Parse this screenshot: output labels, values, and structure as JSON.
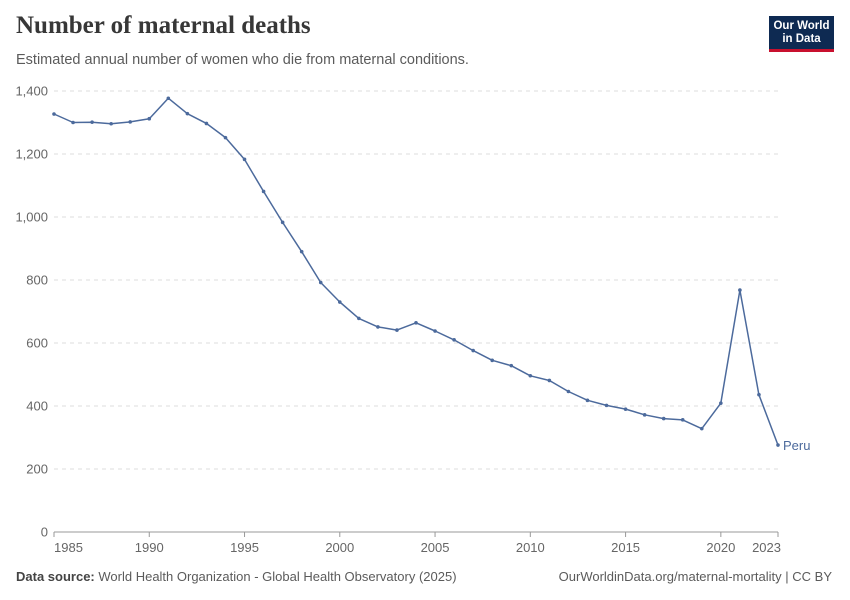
{
  "header": {
    "title": "Number of maternal deaths",
    "subtitle": "Estimated annual number of women who die from maternal conditions."
  },
  "logo": {
    "line1": "Our World",
    "line2": "in Data",
    "bg_color": "#0e2a52",
    "accent_color": "#c8102e"
  },
  "footer": {
    "source_label": "Data source:",
    "source_text": "World Health Organization - Global Health Observatory (2025)",
    "url_text": "OurWorldinData.org/maternal-mortality | CC BY"
  },
  "colors": {
    "series": "#4c6a9c",
    "grid": "#dddddd",
    "axis_text": "#666666"
  },
  "chart_data": {
    "type": "line",
    "title": "Number of maternal deaths",
    "subtitle": "Estimated annual number of women who die from maternal conditions.",
    "xlabel": "",
    "ylabel": "",
    "xlim": [
      1985,
      2023
    ],
    "ylim": [
      0,
      1400
    ],
    "x_ticks": [
      1985,
      1990,
      1995,
      2000,
      2005,
      2010,
      2015,
      2020,
      2023
    ],
    "y_ticks": [
      0,
      200,
      400,
      600,
      800,
      1000,
      1200,
      1400
    ],
    "y_tick_labels": [
      "0",
      "200",
      "400",
      "600",
      "800",
      "1,000",
      "1,200",
      "1,400"
    ],
    "grid": "horizontal dashed",
    "legend": "end-of-line label",
    "series": [
      {
        "name": "Peru",
        "x": [
          1985,
          1986,
          1987,
          1988,
          1989,
          1990,
          1991,
          1992,
          1993,
          1994,
          1995,
          1996,
          1997,
          1998,
          1999,
          2000,
          2001,
          2002,
          2003,
          2004,
          2005,
          2006,
          2007,
          2008,
          2009,
          2010,
          2011,
          2012,
          2013,
          2014,
          2015,
          2016,
          2017,
          2018,
          2019,
          2020,
          2021,
          2022,
          2023
        ],
        "values": [
          1327,
          1300,
          1301,
          1296,
          1302,
          1312,
          1377,
          1328,
          1297,
          1252,
          1183,
          1081,
          983,
          890,
          792,
          730,
          678,
          651,
          641,
          664,
          638,
          610,
          576,
          545,
          528,
          496,
          481,
          446,
          418,
          402,
          390,
          372,
          360,
          356,
          328,
          409,
          768,
          436,
          276
        ]
      }
    ]
  }
}
